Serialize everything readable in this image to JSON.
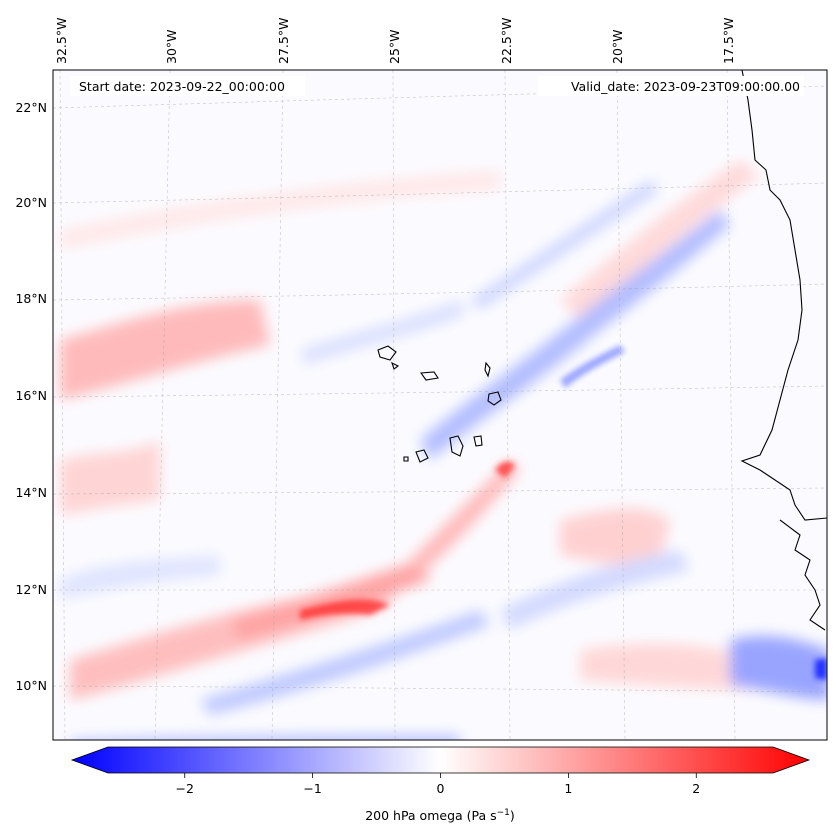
{
  "header": {
    "start_date": "Start date: 2023-09-22_00:00:00",
    "valid_date": "Valid_date: 2023-09-23T09:00:00.00"
  },
  "map": {
    "lon_labels": [
      "32.5°W",
      "30°W",
      "27.5°W",
      "25°W",
      "22.5°W",
      "20°W",
      "17.5°W"
    ],
    "lat_labels": [
      "22°N",
      "20°N",
      "18°N",
      "16°N",
      "14°N",
      "12°N",
      "10°N"
    ],
    "gridlines": true,
    "field": "200 hPa omega",
    "features": [
      "Cabo Verde islands",
      "West African coastline"
    ]
  },
  "colorbar": {
    "tick_labels": [
      "−2",
      "−1",
      "0",
      "1",
      "2"
    ],
    "tick_values": [
      -2,
      -1,
      0,
      1,
      2
    ],
    "range": [
      -2.6,
      2.6
    ],
    "extend": "both",
    "label_main": "200 hPa omega (Pa s",
    "label_sup": "−1",
    "label_close": ")",
    "colors": {
      "negative": "#0000ff",
      "zero": "#ffffff",
      "positive": "#ff0000"
    }
  }
}
